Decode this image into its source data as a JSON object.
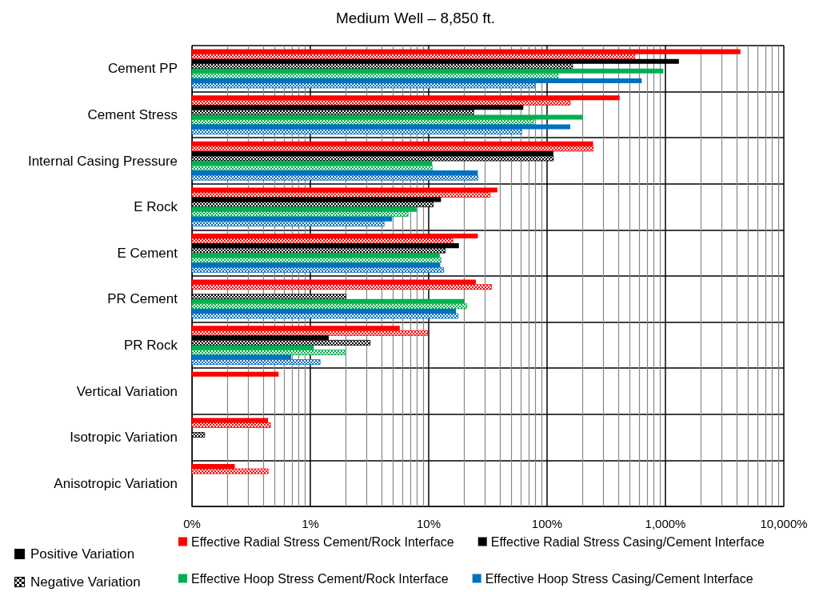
{
  "chart_data": {
    "type": "bar",
    "orientation": "horizontal",
    "title": "Medium Well – 8,850 ft.",
    "categories": [
      "Cement PP",
      "Cement Stress",
      "Internal Casing Pressure",
      "E Rock",
      "E Cement",
      "PR Cement",
      "PR Rock",
      "Vertical Variation",
      "Isotropic Variation",
      "Anisotropic Variation"
    ],
    "series": [
      {
        "name": "Effective Radial Stress Cement/Rock Interface",
        "color": "#ff0000",
        "values": [
          4300,
          410,
          245,
          38,
          26,
          25,
          5.7,
          0.54,
          0.44,
          0.23
        ]
      },
      {
        "color": "#ff0000",
        "values": [
          550,
          157,
          245,
          33,
          16,
          34,
          9.8,
          null,
          0.46,
          0.44
        ]
      },
      {
        "name": "Effective Radial Stress Casing/Cement Interface",
        "color": "#000000",
        "values": [
          1300,
          63,
          113,
          12.7,
          18,
          null,
          1.43,
          null,
          null,
          null
        ]
      },
      {
        "color": "#000000",
        "values": [
          164,
          24,
          113,
          10.9,
          13.8,
          2.0,
          3.2,
          null,
          0.128,
          null
        ]
      },
      {
        "name": "Effective Hoop Stress Cement/Rock Interface",
        "color": "#00b050",
        "values": [
          960,
          200,
          10.7,
          7.9,
          12.4,
          20,
          1.07,
          null,
          null,
          null
        ]
      },
      {
        "color": "#00b050",
        "values": [
          124,
          77,
          10.7,
          6.7,
          12.7,
          21,
          1.96,
          null,
          null,
          null
        ]
      },
      {
        "name": "Effective Hoop Stress Casing/Cement Interface",
        "color": "#0070c0",
        "values": [
          630,
          157,
          26,
          4.9,
          12.5,
          17,
          0.69,
          null,
          null,
          null
        ]
      },
      {
        "color": "#0070c0",
        "values": [
          79,
          61,
          26,
          4.2,
          13.4,
          17.7,
          1.21,
          null,
          null,
          null
        ]
      }
    ],
    "log": "x",
    "xlim": [
      0.1,
      10000
    ],
    "xticks": [
      {
        "value": 0.1,
        "label": "0%"
      },
      {
        "value": 1,
        "label": "1%"
      },
      {
        "value": 10,
        "label": "10%"
      },
      {
        "value": 100,
        "label": "100%"
      },
      {
        "value": 1000,
        "label": "1,000%"
      },
      {
        "value": 10000,
        "label": "10,000%"
      }
    ],
    "grid": true,
    "legend": "bottom",
    "annotations": [
      "Positive Variation",
      "Negative Variation"
    ]
  }
}
